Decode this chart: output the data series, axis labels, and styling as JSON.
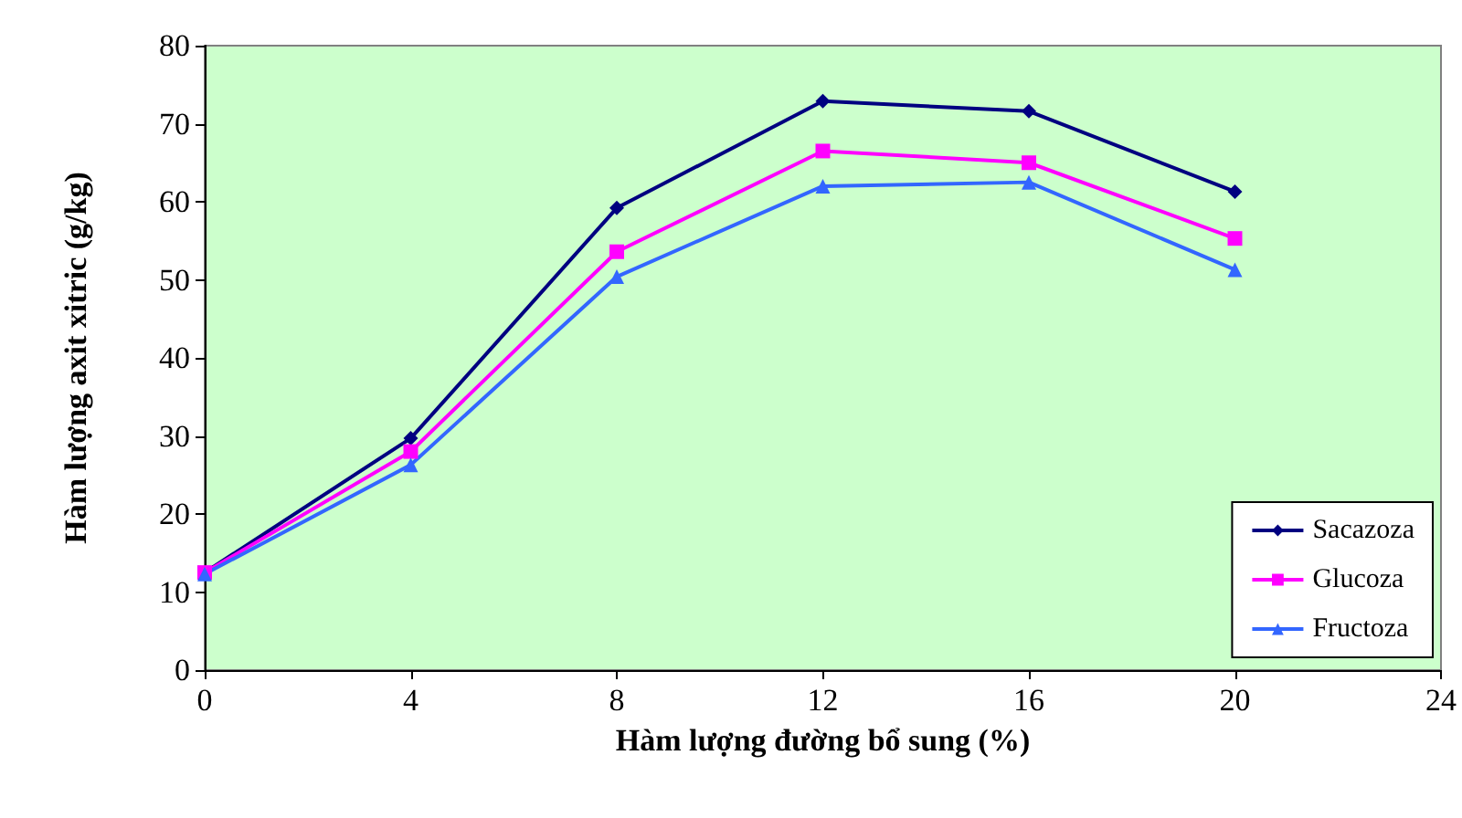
{
  "chart_data": {
    "type": "line",
    "xlabel": "Hàm lượng đường bổ sung (%)",
    "ylabel": "Hàm lượng axit xitric (g/kg)",
    "x": [
      0,
      4,
      8,
      12,
      16,
      20
    ],
    "series": [
      {
        "name": "Sacazoza",
        "color": "#000080",
        "marker": "diamond",
        "values": [
          12.5,
          29.7,
          59.2,
          72.9,
          71.6,
          61.3
        ]
      },
      {
        "name": "Glucoza",
        "color": "#ff00ff",
        "marker": "square",
        "values": [
          12.5,
          28,
          53.6,
          66.5,
          65,
          55.3
        ]
      },
      {
        "name": "Fructoza",
        "color": "#3366ff",
        "marker": "triangle",
        "values": [
          12.3,
          26.3,
          50.4,
          62,
          62.5,
          51.3
        ]
      }
    ],
    "xlim": [
      0,
      24
    ],
    "xticks": [
      0,
      4,
      8,
      12,
      16,
      20,
      24
    ],
    "ylim": [
      0,
      80
    ],
    "yticks": [
      0,
      10,
      20,
      30,
      40,
      50,
      60,
      70,
      80
    ],
    "grid": false,
    "legend": "bottom right",
    "line_style": "solid"
  }
}
